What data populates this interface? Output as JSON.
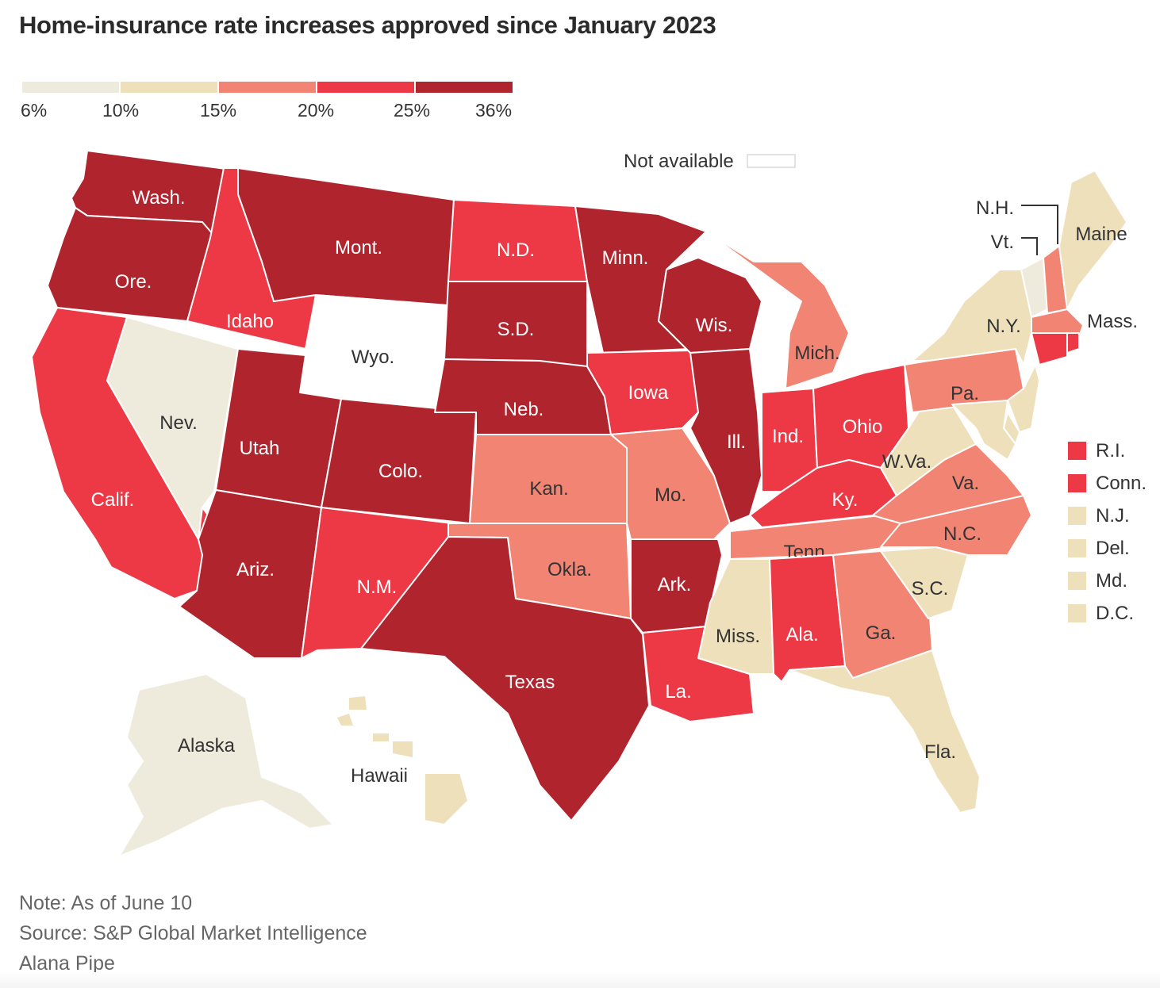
{
  "title": "Home-insurance rate increases approved since January 2023",
  "legend": {
    "bins": [
      {
        "from": "6%",
        "to": "10%",
        "color": "#efebdc"
      },
      {
        "from": "10%",
        "to": "15%",
        "color": "#ede0bb"
      },
      {
        "from": "15%",
        "to": "20%",
        "color": "#f28474"
      },
      {
        "from": "20%",
        "to": "25%",
        "color": "#ec3945"
      },
      {
        "from": "25%",
        "to": "36%",
        "color": "#b0242e"
      }
    ],
    "tick_labels": [
      "6%",
      "10%",
      "15%",
      "20%",
      "25%",
      "36%"
    ],
    "not_available_label": "Not available",
    "not_available_color": "#ffffff"
  },
  "chart_data": {
    "type": "choropleth",
    "title": "Home-insurance rate increases approved since January 2023",
    "value_unit": "percent rate increase (binned)",
    "bins": [
      "6-10%",
      "10-15%",
      "15-20%",
      "20-25%",
      "25-36%"
    ],
    "states": [
      {
        "name": "Wash.",
        "bin": "25-36%"
      },
      {
        "name": "Ore.",
        "bin": "25-36%"
      },
      {
        "name": "Calif.",
        "bin": "20-25%"
      },
      {
        "name": "Idaho",
        "bin": "20-25%"
      },
      {
        "name": "Nev.",
        "bin": "6-10%"
      },
      {
        "name": "Mont.",
        "bin": "25-36%"
      },
      {
        "name": "Wyo.",
        "bin": "Not available"
      },
      {
        "name": "Utah",
        "bin": "25-36%"
      },
      {
        "name": "Ariz.",
        "bin": "25-36%"
      },
      {
        "name": "Colo.",
        "bin": "25-36%"
      },
      {
        "name": "N.M.",
        "bin": "20-25%"
      },
      {
        "name": "N.D.",
        "bin": "20-25%"
      },
      {
        "name": "S.D.",
        "bin": "25-36%"
      },
      {
        "name": "Neb.",
        "bin": "25-36%"
      },
      {
        "name": "Kan.",
        "bin": "15-20%"
      },
      {
        "name": "Okla.",
        "bin": "15-20%"
      },
      {
        "name": "Texas",
        "bin": "25-36%"
      },
      {
        "name": "Minn.",
        "bin": "25-36%"
      },
      {
        "name": "Iowa",
        "bin": "20-25%"
      },
      {
        "name": "Mo.",
        "bin": "15-20%"
      },
      {
        "name": "Ark.",
        "bin": "25-36%"
      },
      {
        "name": "La.",
        "bin": "20-25%"
      },
      {
        "name": "Wis.",
        "bin": "25-36%"
      },
      {
        "name": "Ill.",
        "bin": "25-36%"
      },
      {
        "name": "Mich.",
        "bin": "15-20%"
      },
      {
        "name": "Ind.",
        "bin": "20-25%"
      },
      {
        "name": "Ohio",
        "bin": "20-25%"
      },
      {
        "name": "Ky.",
        "bin": "20-25%"
      },
      {
        "name": "Tenn.",
        "bin": "15-20%"
      },
      {
        "name": "Miss.",
        "bin": "10-15%"
      },
      {
        "name": "Ala.",
        "bin": "20-25%"
      },
      {
        "name": "Ga.",
        "bin": "15-20%"
      },
      {
        "name": "Fla.",
        "bin": "10-15%"
      },
      {
        "name": "S.C.",
        "bin": "10-15%"
      },
      {
        "name": "N.C.",
        "bin": "15-20%"
      },
      {
        "name": "Va.",
        "bin": "15-20%"
      },
      {
        "name": "W.Va.",
        "bin": "10-15%"
      },
      {
        "name": "Pa.",
        "bin": "15-20%"
      },
      {
        "name": "N.Y.",
        "bin": "10-15%"
      },
      {
        "name": "Vt.",
        "bin": "6-10%"
      },
      {
        "name": "N.H.",
        "bin": "15-20%"
      },
      {
        "name": "Maine",
        "bin": "10-15%"
      },
      {
        "name": "Mass.",
        "bin": "15-20%"
      },
      {
        "name": "R.I.",
        "bin": "20-25%"
      },
      {
        "name": "Conn.",
        "bin": "20-25%"
      },
      {
        "name": "N.J.",
        "bin": "10-15%"
      },
      {
        "name": "Del.",
        "bin": "10-15%"
      },
      {
        "name": "Md.",
        "bin": "10-15%"
      },
      {
        "name": "D.C.",
        "bin": "10-15%"
      },
      {
        "name": "Alaska",
        "bin": "6-10%"
      },
      {
        "name": "Hawaii",
        "bin": "10-15%"
      }
    ]
  },
  "small_state_legend": [
    {
      "label": "R.I.",
      "bin": "20-25%"
    },
    {
      "label": "Conn.",
      "bin": "20-25%"
    },
    {
      "label": "N.J.",
      "bin": "10-15%"
    },
    {
      "label": "Del.",
      "bin": "10-15%"
    },
    {
      "label": "Md.",
      "bin": "10-15%"
    },
    {
      "label": "D.C.",
      "bin": "10-15%"
    }
  ],
  "callouts": {
    "nh": "N.H.",
    "vt": "Vt."
  },
  "footer": {
    "note": "Note: As of June 10",
    "source": "Source: S&P Global Market Intelligence",
    "credit": "Alana Pipe"
  }
}
